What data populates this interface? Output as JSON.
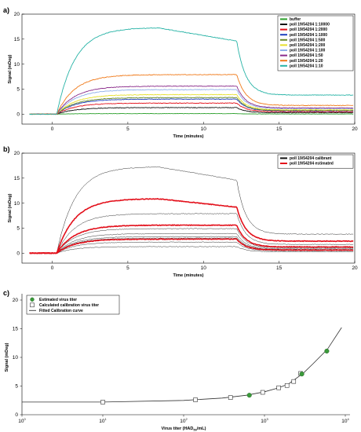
{
  "chart_data": [
    {
      "panel": "a)",
      "type": "line",
      "xlabel": "Time (minutes)",
      "ylabel": "Signal (mDeg)",
      "xlim": [
        -2,
        20
      ],
      "ylim": [
        -2,
        20
      ],
      "xticks": [
        0,
        5,
        10,
        15,
        20
      ],
      "yticks": [
        0,
        5,
        10,
        15,
        20
      ],
      "legend_position": "top-right",
      "series": [
        {
          "name": "buffer",
          "color": "#2ca02c",
          "plateau": 0.1
        },
        {
          "name": "poll 19/54204 1:10000",
          "color": "#111111",
          "plateau": 1.3
        },
        {
          "name": "poll 19/54204 1:2000",
          "color": "#e3101b",
          "plateau": 2.2
        },
        {
          "name": "poll 19/54204 1:1000",
          "color": "#1f3fbf",
          "plateau": 3.0
        },
        {
          "name": "poll 19/54204 1:500",
          "color": "#6a8a2a",
          "plateau": 3.3
        },
        {
          "name": "poll 19/54204 1:200",
          "color": "#e7e02a",
          "plateau": 3.9
        },
        {
          "name": "poll 19/54204 1:100",
          "color": "#8fb0e8",
          "plateau": 4.9
        },
        {
          "name": "poll 19/54204 1:50",
          "color": "#8a2a8a",
          "plateau": 5.6
        },
        {
          "name": "poll 19/54204 1:20",
          "color": "#f07a1a",
          "plateau": 7.9
        },
        {
          "name": "poll 19/54204 1:10",
          "color": "#27b3a6",
          "plateau": 17.3
        }
      ]
    },
    {
      "panel": "b)",
      "type": "line",
      "xlabel": "Time (minutes)",
      "ylabel": "Signal (mDeg)",
      "xlim": [
        -2,
        20
      ],
      "ylim": [
        -2,
        20
      ],
      "xticks": [
        0,
        5,
        10,
        15,
        20
      ],
      "yticks": [
        0,
        5,
        10,
        15,
        20
      ],
      "legend_position": "top-right",
      "series": [
        {
          "name": "poll 19/54204 calibrant",
          "color": "#111111",
          "plateaus": [
            1.3,
            2.2,
            3.0,
            3.3,
            3.9,
            4.9,
            5.6,
            7.9,
            17.3
          ]
        },
        {
          "name": "poll 19/54204 estimated",
          "color": "#e3101b",
          "plateaus": [
            2.8,
            5.6,
            10.9
          ]
        }
      ]
    },
    {
      "panel": "c)",
      "type": "scatter",
      "xlabel": "Virus titer (HAD",
      "xlabel_sub": "50",
      "xlabel_end": "/mL)",
      "ylabel": "Signal (mDeg)",
      "xscale": "log",
      "xlim": [
        1,
        10000
      ],
      "ylim": [
        0,
        20
      ],
      "xticks": [
        1,
        10,
        100,
        1000,
        10000
      ],
      "xtick_labels": [
        {
          "base": "10",
          "exp": "0"
        },
        {
          "base": "10",
          "exp": "1"
        },
        {
          "base": "10",
          "exp": "2"
        },
        {
          "base": "10",
          "exp": "3"
        },
        {
          "base": "10",
          "exp": "4"
        }
      ],
      "yticks": [
        0,
        5,
        10,
        15,
        20
      ],
      "legend_position": "top-left",
      "series": [
        {
          "name": "Estimated virus titer",
          "color": "#3a9a3a",
          "points": [
            [
              650,
              3.4
            ],
            [
              2900,
              7.1
            ],
            [
              5900,
              11.1
            ]
          ]
        },
        {
          "name": "Calculated calibration virus titer",
          "color": "#ffffff",
          "points": [
            [
              10,
              2.2
            ],
            [
              140,
              2.6
            ],
            [
              380,
              3.0
            ],
            [
              950,
              3.9
            ],
            [
              1500,
              4.7
            ],
            [
              1900,
              5.1
            ],
            [
              2300,
              5.8
            ],
            [
              2800,
              7.2
            ]
          ]
        },
        {
          "name": "Fitted Calibration curve",
          "color": "#333333",
          "points": [
            [
              1,
              2.2
            ],
            [
              10,
              2.2
            ],
            [
              100,
              2.5
            ],
            [
              300,
              2.9
            ],
            [
              600,
              3.4
            ],
            [
              1000,
              4.0
            ],
            [
              1500,
              4.7
            ],
            [
              2000,
              5.4
            ],
            [
              3000,
              7.2
            ],
            [
              4000,
              8.9
            ],
            [
              6000,
              11.4
            ],
            [
              9000,
              15.2
            ]
          ]
        }
      ]
    }
  ]
}
